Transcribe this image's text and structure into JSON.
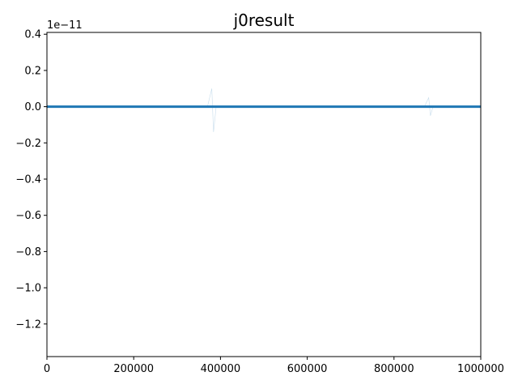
{
  "chart_data": {
    "type": "line",
    "title": "j0result",
    "xlabel": "",
    "ylabel": "",
    "y_offset_text": "1e−11",
    "xlim": [
      0,
      1000000
    ],
    "ylim": [
      -1.38e-11,
      4.1e-12
    ],
    "x_ticks": [
      0,
      200000,
      400000,
      600000,
      800000,
      1000000
    ],
    "x_tick_labels": [
      "0",
      "200000",
      "400000",
      "600000",
      "800000",
      "1000000"
    ],
    "y_ticks": [
      0.4,
      0.2,
      0.0,
      -0.2,
      -0.4,
      -0.6,
      -0.8,
      -1.0,
      -1.2
    ],
    "y_tick_labels": [
      "0.4",
      "0.2",
      "0.0",
      "−0.2",
      "−0.4",
      "−0.6",
      "−0.8",
      "−1.0",
      "−1.2"
    ],
    "y_tick_scale": 1e-11,
    "grid": false,
    "series": [
      {
        "color": "#1f77b4",
        "x": [
          0,
          100000,
          200000,
          300000,
          370000,
          380000,
          384000,
          390000,
          500000,
          600000,
          700000,
          800000,
          870000,
          880000,
          884000,
          890000,
          1000000
        ],
        "y": [
          0,
          0,
          0,
          0,
          0,
          1e-12,
          -1.4e-12,
          0,
          0,
          0,
          0,
          0,
          0,
          5e-13,
          -5e-13,
          0,
          0
        ]
      }
    ]
  }
}
